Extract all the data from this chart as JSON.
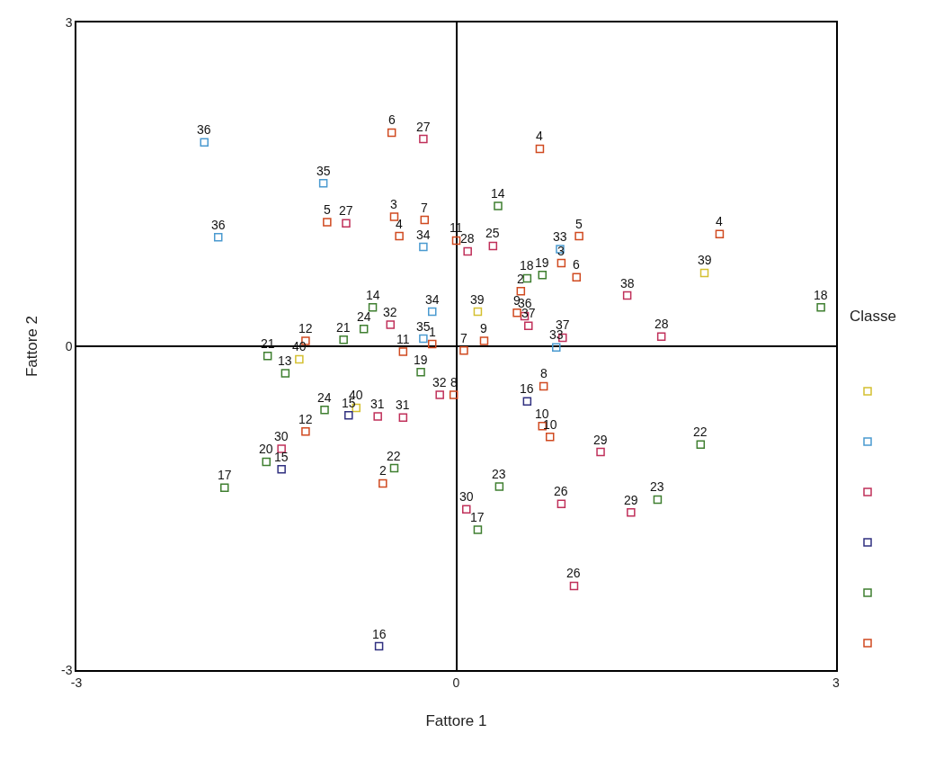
{
  "chart_data": {
    "type": "scatter",
    "xlabel": "Fattore 1",
    "ylabel": "Fattore 2",
    "legend_title": "Classe",
    "marker": "square",
    "xlim": [
      -3,
      3
    ],
    "xticks": [
      -3,
      0,
      3
    ],
    "ylim": [
      -3,
      3
    ],
    "yticks": [
      -3,
      0,
      3
    ],
    "series": [
      {
        "color": "#d4c030",
        "x": [
          1.96,
          0.17,
          -1.24,
          -0.79
        ],
        "values": [
          0.68,
          0.32,
          -0.12,
          -0.57
        ]
      },
      {
        "color": "#4a9ad0",
        "x": [
          -1.99,
          -1.88,
          -1.05,
          -0.26,
          -0.19,
          -0.26,
          0.82,
          0.79
        ],
        "values": [
          1.89,
          1.01,
          1.51,
          0.92,
          0.32,
          0.07,
          0.9,
          -0.01
        ]
      },
      {
        "color": "#c0305a",
        "x": [
          -0.26,
          -0.87,
          0.09,
          0.29,
          1.35,
          1.62,
          0.54,
          0.57,
          0.84,
          -0.52,
          -0.62,
          -0.42,
          -1.38,
          0.08,
          1.14,
          1.38,
          0.83,
          0.93,
          -0.13
        ],
        "values": [
          1.92,
          1.14,
          0.88,
          0.93,
          0.47,
          0.09,
          0.28,
          0.19,
          0.08,
          0.2,
          -0.65,
          -0.66,
          -0.95,
          -1.51,
          -0.98,
          -1.54,
          -1.46,
          -2.22,
          -0.45
        ]
      },
      {
        "color": "#303080",
        "x": [
          -0.85,
          -1.38,
          0.56,
          -0.61
        ],
        "values": [
          -0.64,
          -1.14,
          -0.51,
          -2.78
        ]
      },
      {
        "color": "#3f7f30",
        "x": [
          0.33,
          0.56,
          0.68,
          2.88,
          1.93,
          0.34,
          1.59,
          0.17,
          -0.49,
          -1.5,
          -1.83,
          -1.35,
          -1.49,
          -0.89,
          -0.73,
          -0.66,
          -0.28,
          -1.04
        ],
        "values": [
          1.3,
          0.63,
          0.66,
          0.36,
          -0.91,
          -1.3,
          -1.42,
          -1.7,
          -1.13,
          -1.07,
          -1.31,
          -0.25,
          -0.09,
          0.06,
          0.16,
          0.36,
          -0.24,
          -0.59
        ]
      },
      {
        "color": "#d04a20",
        "x": [
          -0.51,
          0.66,
          -1.02,
          -0.49,
          -0.45,
          -0.25,
          0.0,
          0.97,
          0.83,
          0.95,
          2.08,
          0.51,
          0.48,
          0.22,
          0.06,
          -0.19,
          -0.42,
          -1.19,
          -0.02,
          0.69,
          0.68,
          0.74,
          -1.19,
          -0.58
        ],
        "values": [
          1.98,
          1.83,
          1.15,
          1.2,
          1.02,
          1.17,
          0.98,
          1.02,
          0.77,
          0.64,
          1.04,
          0.51,
          0.31,
          0.05,
          -0.04,
          0.02,
          -0.05,
          0.05,
          -0.45,
          -0.37,
          -0.74,
          -0.84,
          -0.79,
          -1.27
        ]
      }
    ],
    "annotations": [
      {
        "text": "39",
        "x": 1.96,
        "y": 0.68
      },
      {
        "text": "39",
        "x": 0.17,
        "y": 0.32
      },
      {
        "text": "40",
        "x": -1.24,
        "y": -0.12
      },
      {
        "text": "40",
        "x": -0.79,
        "y": -0.57
      },
      {
        "text": "36",
        "x": -1.99,
        "y": 1.89
      },
      {
        "text": "36",
        "x": -1.88,
        "y": 1.01
      },
      {
        "text": "35",
        "x": -1.05,
        "y": 1.51
      },
      {
        "text": "34",
        "x": -0.26,
        "y": 0.92
      },
      {
        "text": "34",
        "x": -0.19,
        "y": 0.32
      },
      {
        "text": "35",
        "x": -0.26,
        "y": 0.07
      },
      {
        "text": "33",
        "x": 0.82,
        "y": 0.9
      },
      {
        "text": "33",
        "x": 0.79,
        "y": -0.01
      },
      {
        "text": "27",
        "x": -0.26,
        "y": 1.92
      },
      {
        "text": "27",
        "x": -0.87,
        "y": 1.14
      },
      {
        "text": "28",
        "x": 0.09,
        "y": 0.88
      },
      {
        "text": "25",
        "x": 0.29,
        "y": 0.93
      },
      {
        "text": "38",
        "x": 1.35,
        "y": 0.47
      },
      {
        "text": "28",
        "x": 1.62,
        "y": 0.09
      },
      {
        "text": "36",
        "x": 0.54,
        "y": 0.28
      },
      {
        "text": "37",
        "x": 0.57,
        "y": 0.19
      },
      {
        "text": "37",
        "x": 0.84,
        "y": 0.08
      },
      {
        "text": "32",
        "x": -0.52,
        "y": 0.2
      },
      {
        "text": "31",
        "x": -0.62,
        "y": -0.65
      },
      {
        "text": "31",
        "x": -0.42,
        "y": -0.66
      },
      {
        "text": "30",
        "x": -1.38,
        "y": -0.95
      },
      {
        "text": "30",
        "x": 0.08,
        "y": -1.51
      },
      {
        "text": "29",
        "x": 1.14,
        "y": -0.98
      },
      {
        "text": "29",
        "x": 1.38,
        "y": -1.54
      },
      {
        "text": "26",
        "x": 0.83,
        "y": -1.46
      },
      {
        "text": "26",
        "x": 0.93,
        "y": -2.22
      },
      {
        "text": "32",
        "x": -0.13,
        "y": -0.45
      },
      {
        "text": "15",
        "x": -0.85,
        "y": -0.64
      },
      {
        "text": "15",
        "x": -1.38,
        "y": -1.14
      },
      {
        "text": "16",
        "x": 0.56,
        "y": -0.51
      },
      {
        "text": "16",
        "x": -0.61,
        "y": -2.78
      },
      {
        "text": "14",
        "x": 0.33,
        "y": 1.3
      },
      {
        "text": "18",
        "x": 0.56,
        "y": 0.63
      },
      {
        "text": "19",
        "x": 0.68,
        "y": 0.66
      },
      {
        "text": "18",
        "x": 2.88,
        "y": 0.36
      },
      {
        "text": "22",
        "x": 1.93,
        "y": -0.91
      },
      {
        "text": "23",
        "x": 0.34,
        "y": -1.3
      },
      {
        "text": "23",
        "x": 1.59,
        "y": -1.42
      },
      {
        "text": "17",
        "x": 0.17,
        "y": -1.7
      },
      {
        "text": "22",
        "x": -0.49,
        "y": -1.13
      },
      {
        "text": "20",
        "x": -1.5,
        "y": -1.07
      },
      {
        "text": "17",
        "x": -1.83,
        "y": -1.31
      },
      {
        "text": "13",
        "x": -1.35,
        "y": -0.25
      },
      {
        "text": "21",
        "x": -1.49,
        "y": -0.09
      },
      {
        "text": "21",
        "x": -0.89,
        "y": 0.06
      },
      {
        "text": "24",
        "x": -0.73,
        "y": 0.16
      },
      {
        "text": "14",
        "x": -0.66,
        "y": 0.36
      },
      {
        "text": "19",
        "x": -0.28,
        "y": -0.24
      },
      {
        "text": "24",
        "x": -1.04,
        "y": -0.59
      },
      {
        "text": "6",
        "x": -0.51,
        "y": 1.98
      },
      {
        "text": "4",
        "x": 0.66,
        "y": 1.83
      },
      {
        "text": "5",
        "x": -1.02,
        "y": 1.15
      },
      {
        "text": "3",
        "x": -0.49,
        "y": 1.2
      },
      {
        "text": "4",
        "x": -0.45,
        "y": 1.02
      },
      {
        "text": "7",
        "x": -0.25,
        "y": 1.17
      },
      {
        "text": "11",
        "x": 0.0,
        "y": 0.98
      },
      {
        "text": "5",
        "x": 0.97,
        "y": 1.02
      },
      {
        "text": "3",
        "x": 0.83,
        "y": 0.77
      },
      {
        "text": "6",
        "x": 0.95,
        "y": 0.64
      },
      {
        "text": "4",
        "x": 2.08,
        "y": 1.04
      },
      {
        "text": "2",
        "x": 0.51,
        "y": 0.51
      },
      {
        "text": "9",
        "x": 0.48,
        "y": 0.31
      },
      {
        "text": "9",
        "x": 0.22,
        "y": 0.05
      },
      {
        "text": "7",
        "x": 0.06,
        "y": -0.04
      },
      {
        "text": "1",
        "x": -0.19,
        "y": 0.02
      },
      {
        "text": "11",
        "x": -0.42,
        "y": -0.05
      },
      {
        "text": "12",
        "x": -1.19,
        "y": 0.05
      },
      {
        "text": "8",
        "x": -0.02,
        "y": -0.45
      },
      {
        "text": "8",
        "x": 0.69,
        "y": -0.37
      },
      {
        "text": "10",
        "x": 0.68,
        "y": -0.74
      },
      {
        "text": "10",
        "x": 0.74,
        "y": -0.84
      },
      {
        "text": "12",
        "x": -1.19,
        "y": -0.79
      },
      {
        "text": "2",
        "x": -0.58,
        "y": -1.27
      }
    ]
  }
}
